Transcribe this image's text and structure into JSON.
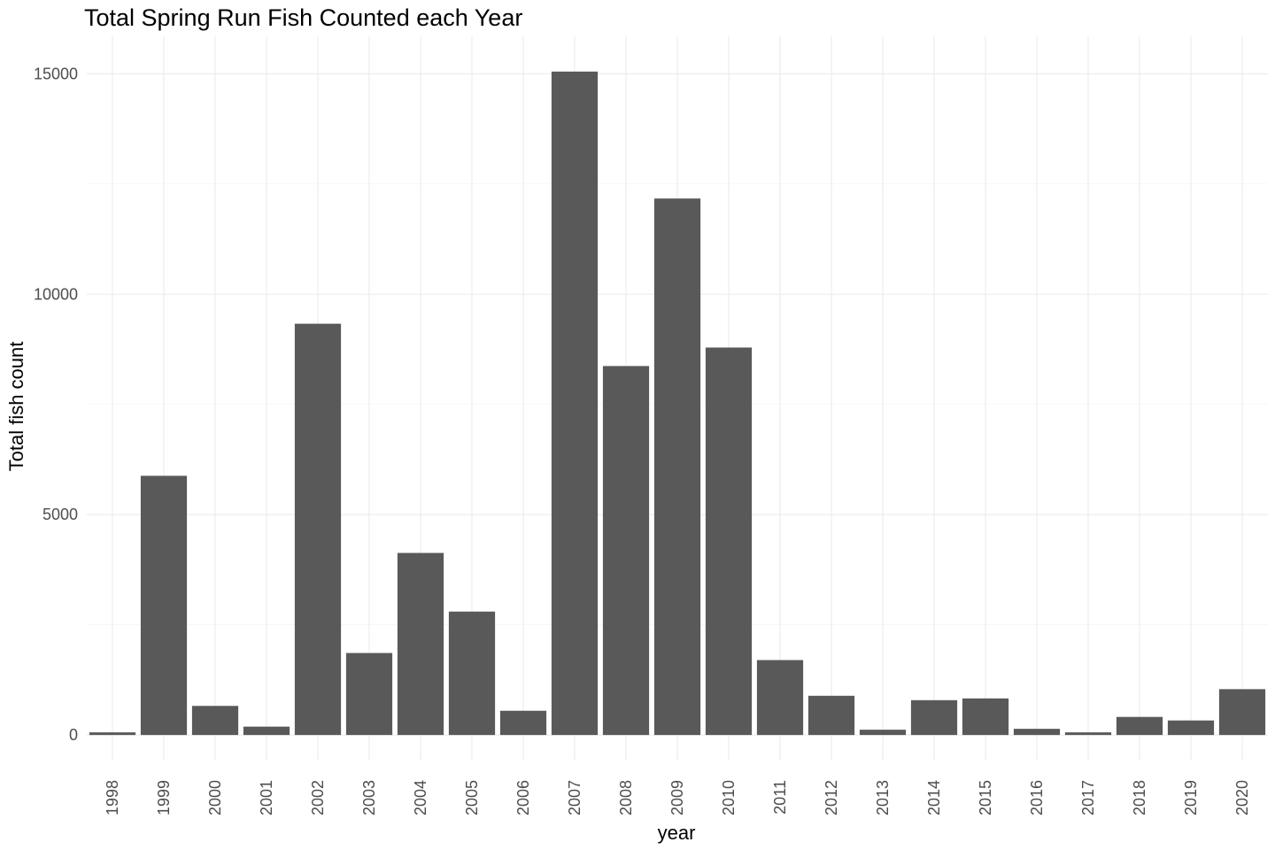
{
  "chart_data": {
    "type": "bar",
    "title": "Total Spring Run Fish Counted each Year",
    "xlabel": "year",
    "ylabel": "Total fish count",
    "categories": [
      "1998",
      "1999",
      "2000",
      "2001",
      "2002",
      "2003",
      "2004",
      "2005",
      "2006",
      "2007",
      "2008",
      "2009",
      "2010",
      "2011",
      "2012",
      "2013",
      "2014",
      "2015",
      "2016",
      "2017",
      "2018",
      "2019",
      "2020"
    ],
    "values": [
      60,
      5880,
      660,
      190,
      9330,
      1860,
      4130,
      2800,
      550,
      15050,
      8370,
      12170,
      8790,
      1700,
      890,
      120,
      790,
      830,
      140,
      60,
      410,
      330,
      1040
    ],
    "ylim": [
      -580,
      15850
    ],
    "yticks": [
      0,
      5000,
      10000,
      15000
    ],
    "ytick_labels": [
      "0",
      "5000",
      "10000",
      "15000"
    ],
    "bar_color": "#595959",
    "grid": true,
    "legend": "none"
  }
}
